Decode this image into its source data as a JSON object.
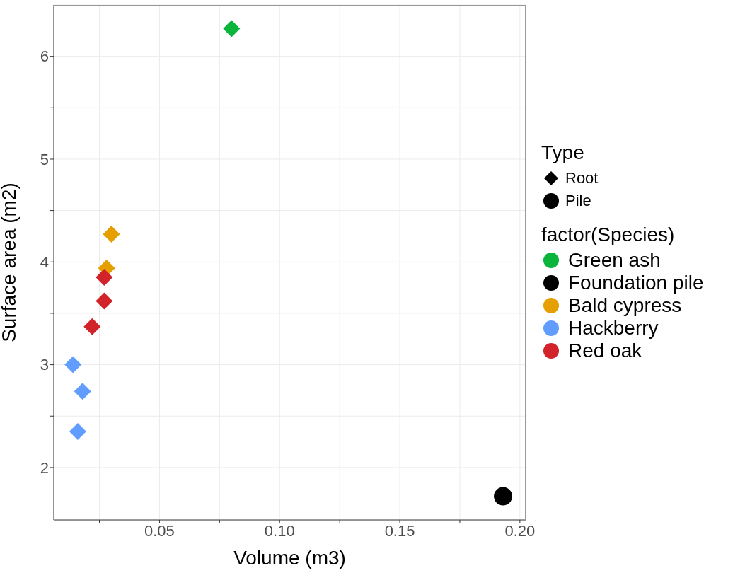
{
  "chart_data": {
    "type": "scatter",
    "xlabel": "Volume (m3)",
    "ylabel": "Surface area (m2)",
    "legend_title": "factor(Species)",
    "annotations": [
      "Type",
      "Root",
      "Pile"
    ],
    "xlim": [
      0.006,
      0.2024
    ],
    "xticks": [
      {
        "value": 0.025,
        "label": null
      },
      0.05,
      {
        "value": 0.075,
        "label": null
      },
      {
        "value": 0.1,
        "label": "0.10"
      },
      {
        "value": 0.125,
        "label": null
      },
      0.15,
      {
        "value": 0.175,
        "label": null
      },
      {
        "value": 0.2,
        "label": "0.20"
      }
    ],
    "ylim": [
      1.49,
      6.5
    ],
    "yticks": [
      2,
      {
        "value": 2.5,
        "label": null
      },
      3,
      {
        "value": 3.5,
        "label": null
      },
      4,
      {
        "value": 4.5,
        "label": null
      },
      5,
      {
        "value": 5.5,
        "label": null
      },
      6
    ],
    "grid": true,
    "legend": "right",
    "series": [
      {
        "name": "Green ash",
        "color": "#0bb53c",
        "marker": "diamond",
        "x": [
          0.08
        ],
        "values": [
          6.27
        ]
      },
      {
        "name": "Foundation pile",
        "color": "#000000",
        "marker": "circle",
        "x": [
          0.193
        ],
        "values": [
          1.72
        ]
      },
      {
        "name": "Bald cypress",
        "color": "#e69f00",
        "marker": "diamond",
        "x": [
          0.03,
          0.028
        ],
        "values": [
          4.27,
          3.94
        ]
      },
      {
        "name": "Hackberry",
        "color": "#619cff",
        "marker": "diamond",
        "x": [
          0.014,
          0.018,
          0.016
        ],
        "values": [
          3.0,
          2.74,
          2.35
        ]
      },
      {
        "name": "Red oak",
        "color": "#d2232a",
        "marker": "diamond",
        "x": [
          0.027,
          0.027,
          0.022
        ],
        "values": [
          3.85,
          3.62,
          3.37
        ]
      }
    ]
  }
}
